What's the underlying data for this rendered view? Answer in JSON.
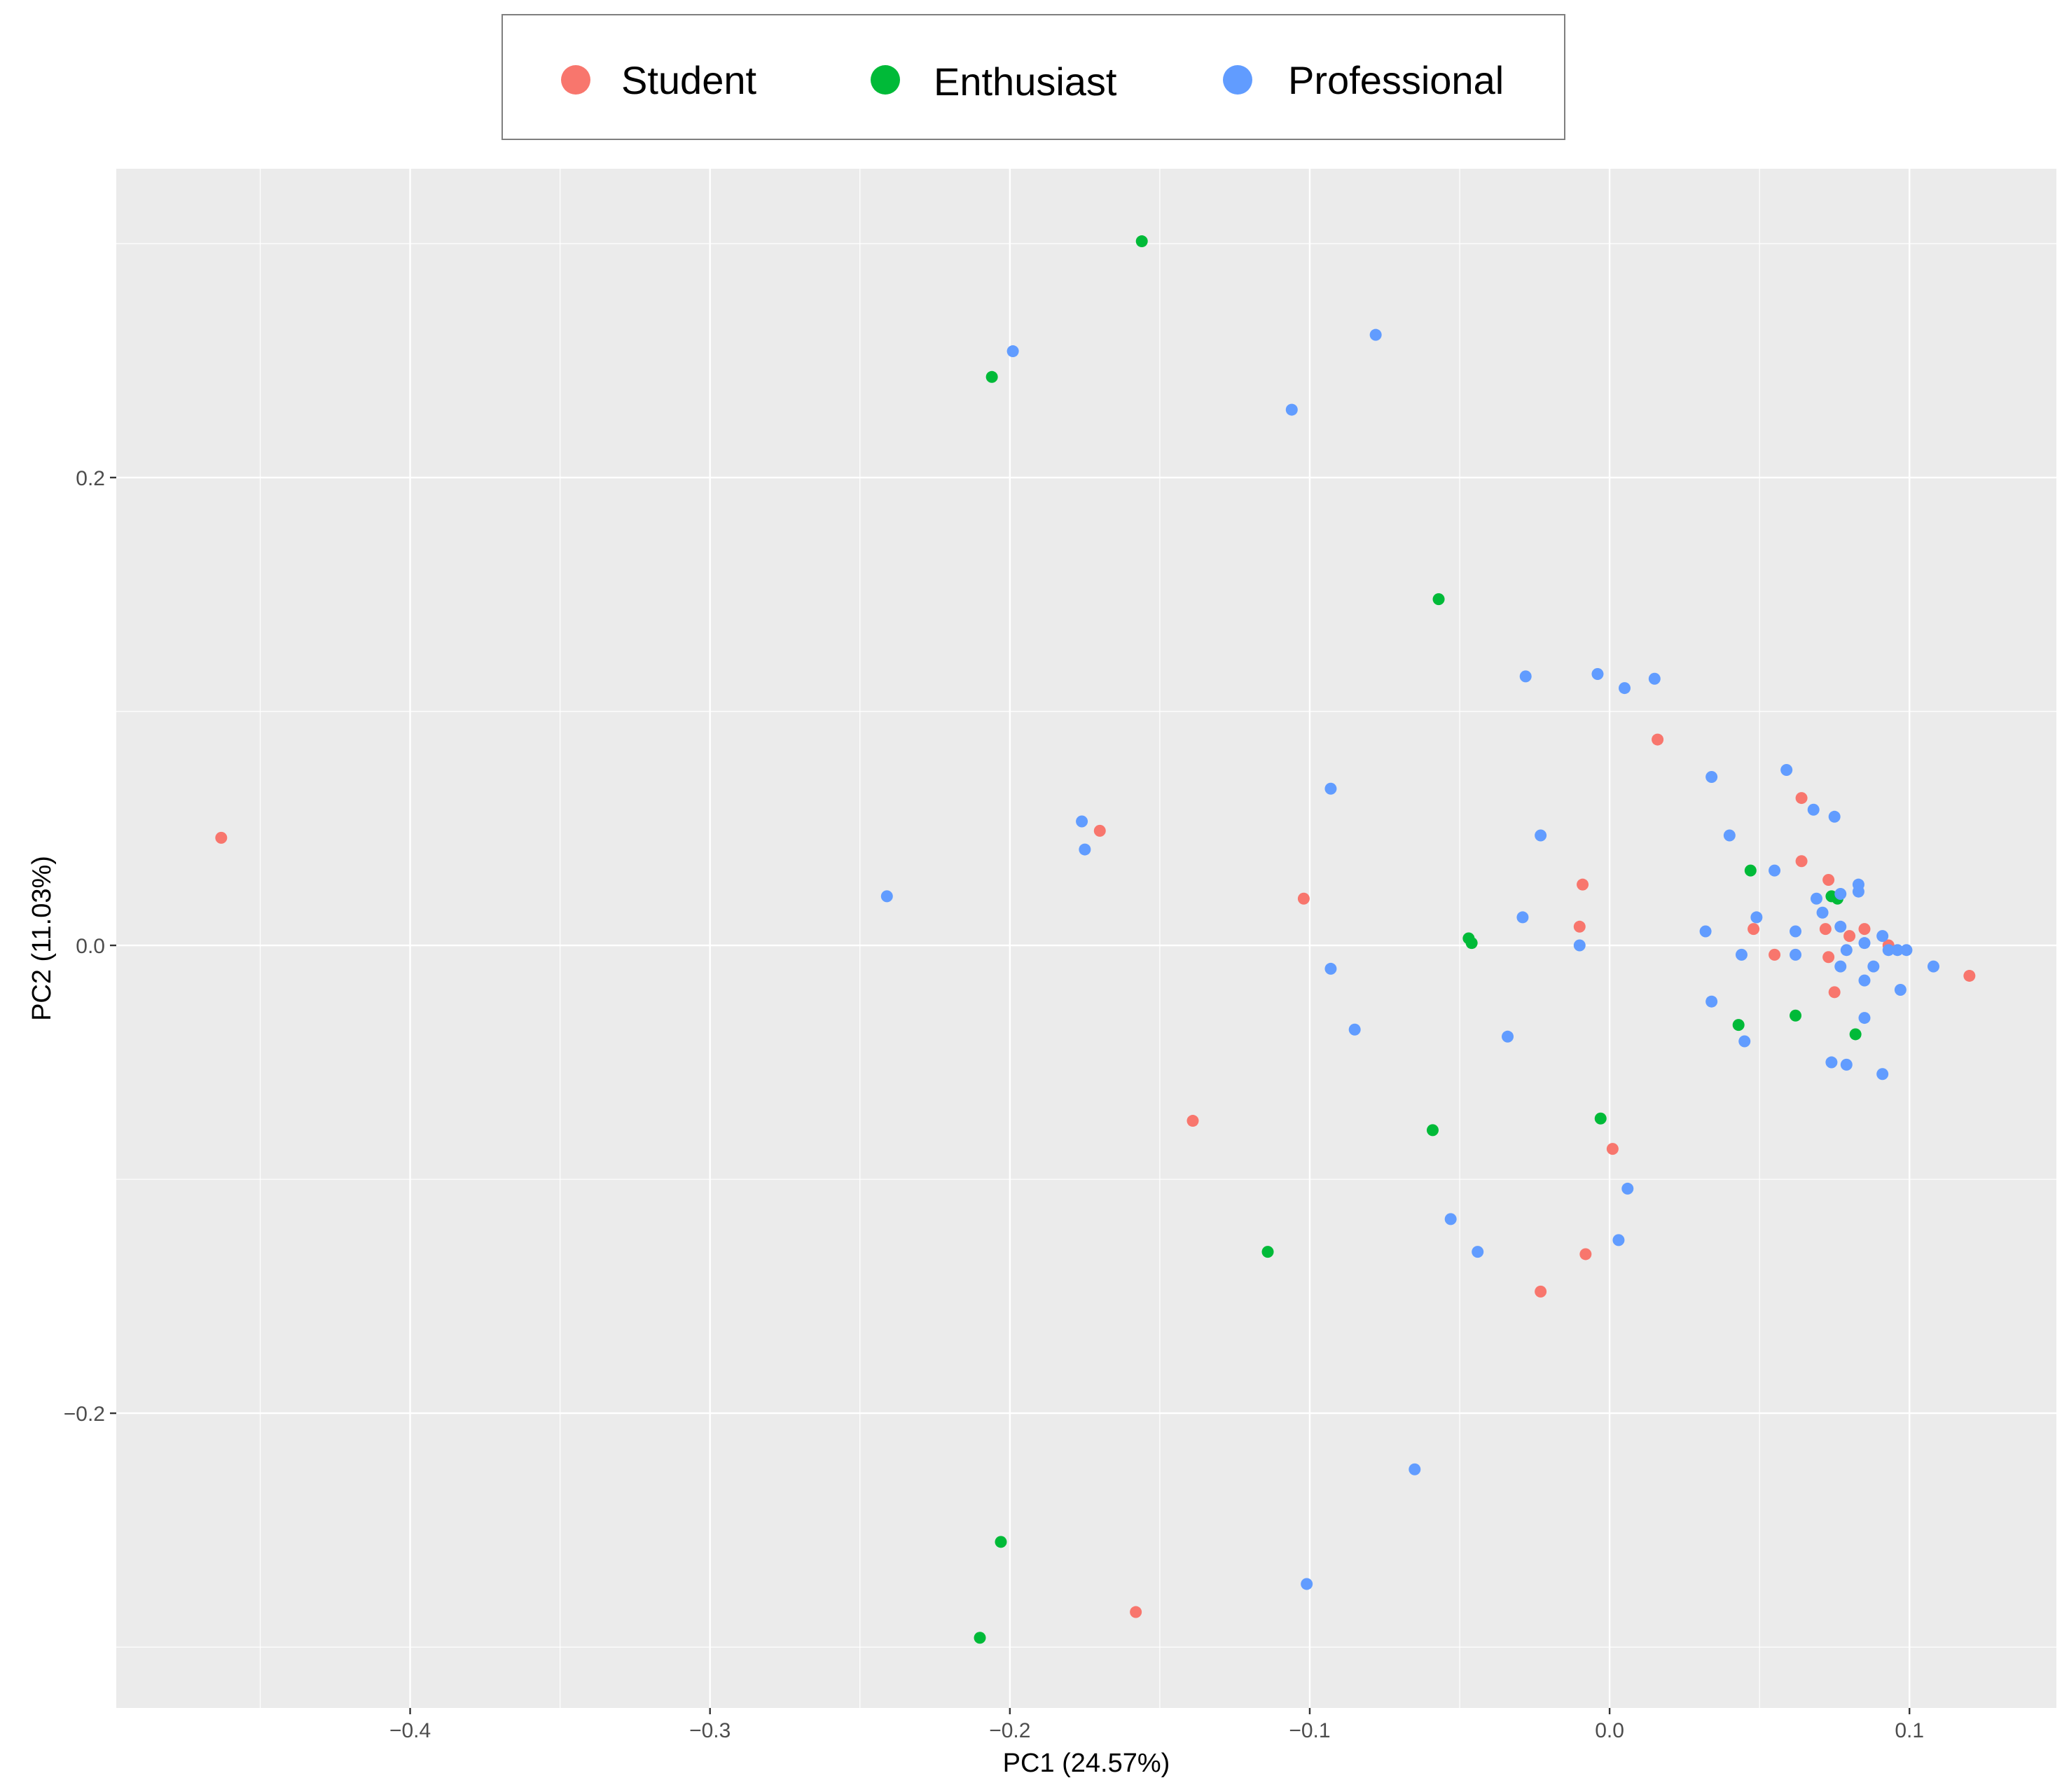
{
  "chart_data": {
    "type": "scatter",
    "xlabel": "PC1 (24.57%)",
    "ylabel": "PC2 (11.03%)",
    "xlim": [
      -0.498,
      0.149
    ],
    "ylim": [
      -0.326,
      0.332
    ],
    "x_ticks": [
      -0.4,
      -0.3,
      -0.2,
      -0.1,
      0.0,
      0.1
    ],
    "x_tick_labels": [
      "−0.4",
      "−0.3",
      "−0.2",
      "−0.1",
      "0.0",
      "0.1"
    ],
    "y_ticks": [
      -0.2,
      0.0,
      0.2
    ],
    "y_tick_labels": [
      "−0.2",
      "0.0",
      "0.2"
    ],
    "grid": true,
    "legend_position": "top",
    "series": [
      {
        "name": "Student",
        "color": "#F8766D",
        "points": [
          [
            -0.463,
            0.046
          ],
          [
            -0.17,
            0.049
          ],
          [
            -0.102,
            0.02
          ],
          [
            -0.139,
            -0.075
          ],
          [
            -0.158,
            -0.285
          ],
          [
            -0.023,
            -0.148
          ],
          [
            -0.008,
            -0.132
          ],
          [
            0.001,
            -0.087
          ],
          [
            -0.009,
            0.026
          ],
          [
            -0.01,
            0.008
          ],
          [
            0.016,
            0.088
          ],
          [
            0.064,
            0.063
          ],
          [
            0.064,
            0.036
          ],
          [
            0.073,
            0.028
          ],
          [
            0.048,
            0.007
          ],
          [
            0.055,
            -0.004
          ],
          [
            0.072,
            0.007
          ],
          [
            0.08,
            0.004
          ],
          [
            0.085,
            0.007
          ],
          [
            0.093,
            0.0
          ],
          [
            0.073,
            -0.005
          ],
          [
            0.075,
            -0.02
          ],
          [
            0.12,
            -0.013
          ]
        ]
      },
      {
        "name": "Enthusiast",
        "color": "#00BA38",
        "points": [
          [
            -0.156,
            0.301
          ],
          [
            -0.206,
            0.243
          ],
          [
            -0.057,
            0.148
          ],
          [
            -0.047,
            0.003
          ],
          [
            -0.046,
            0.001
          ],
          [
            -0.059,
            -0.079
          ],
          [
            -0.114,
            -0.131
          ],
          [
            -0.203,
            -0.255
          ],
          [
            -0.21,
            -0.296
          ],
          [
            -0.003,
            -0.074
          ],
          [
            0.047,
            0.032
          ],
          [
            0.043,
            -0.034
          ],
          [
            0.062,
            -0.03
          ],
          [
            0.074,
            0.021
          ],
          [
            0.076,
            0.02
          ],
          [
            0.082,
            -0.038
          ]
        ]
      },
      {
        "name": "Professional",
        "color": "#619CFF",
        "points": [
          [
            -0.199,
            0.254
          ],
          [
            -0.078,
            0.261
          ],
          [
            -0.106,
            0.229
          ],
          [
            -0.176,
            0.053
          ],
          [
            -0.175,
            0.041
          ],
          [
            -0.241,
            0.021
          ],
          [
            -0.093,
            0.067
          ],
          [
            -0.093,
            -0.01
          ],
          [
            -0.085,
            -0.036
          ],
          [
            -0.034,
            -0.039
          ],
          [
            -0.029,
            0.012
          ],
          [
            -0.023,
            0.047
          ],
          [
            -0.028,
            0.115
          ],
          [
            -0.004,
            0.116
          ],
          [
            0.005,
            0.11
          ],
          [
            0.015,
            0.114
          ],
          [
            0.034,
            0.072
          ],
          [
            0.04,
            0.047
          ],
          [
            0.059,
            0.075
          ],
          [
            0.068,
            0.058
          ],
          [
            0.075,
            0.055
          ],
          [
            0.055,
            0.032
          ],
          [
            0.049,
            0.012
          ],
          [
            0.032,
            0.006
          ],
          [
            0.044,
            -0.004
          ],
          [
            0.062,
            0.006
          ],
          [
            0.062,
            -0.004
          ],
          [
            0.069,
            0.02
          ],
          [
            0.071,
            0.014
          ],
          [
            0.077,
            0.022
          ],
          [
            0.077,
            0.008
          ],
          [
            0.079,
            -0.002
          ],
          [
            0.083,
            0.023
          ],
          [
            0.083,
            0.026
          ],
          [
            0.085,
            0.001
          ],
          [
            0.088,
            -0.009
          ],
          [
            0.091,
            0.004
          ],
          [
            0.093,
            -0.002
          ],
          [
            0.096,
            -0.002
          ],
          [
            0.099,
            -0.002
          ],
          [
            0.108,
            -0.009
          ],
          [
            0.097,
            -0.019
          ],
          [
            0.085,
            -0.015
          ],
          [
            0.085,
            -0.031
          ],
          [
            0.077,
            -0.009
          ],
          [
            0.034,
            -0.024
          ],
          [
            0.045,
            -0.041
          ],
          [
            0.074,
            -0.05
          ],
          [
            0.079,
            -0.051
          ],
          [
            0.091,
            -0.055
          ],
          [
            -0.01,
            0.0
          ],
          [
            -0.053,
            -0.117
          ],
          [
            -0.044,
            -0.131
          ],
          [
            0.006,
            -0.104
          ],
          [
            0.003,
            -0.126
          ],
          [
            -0.065,
            -0.224
          ],
          [
            -0.101,
            -0.273
          ]
        ]
      }
    ]
  }
}
